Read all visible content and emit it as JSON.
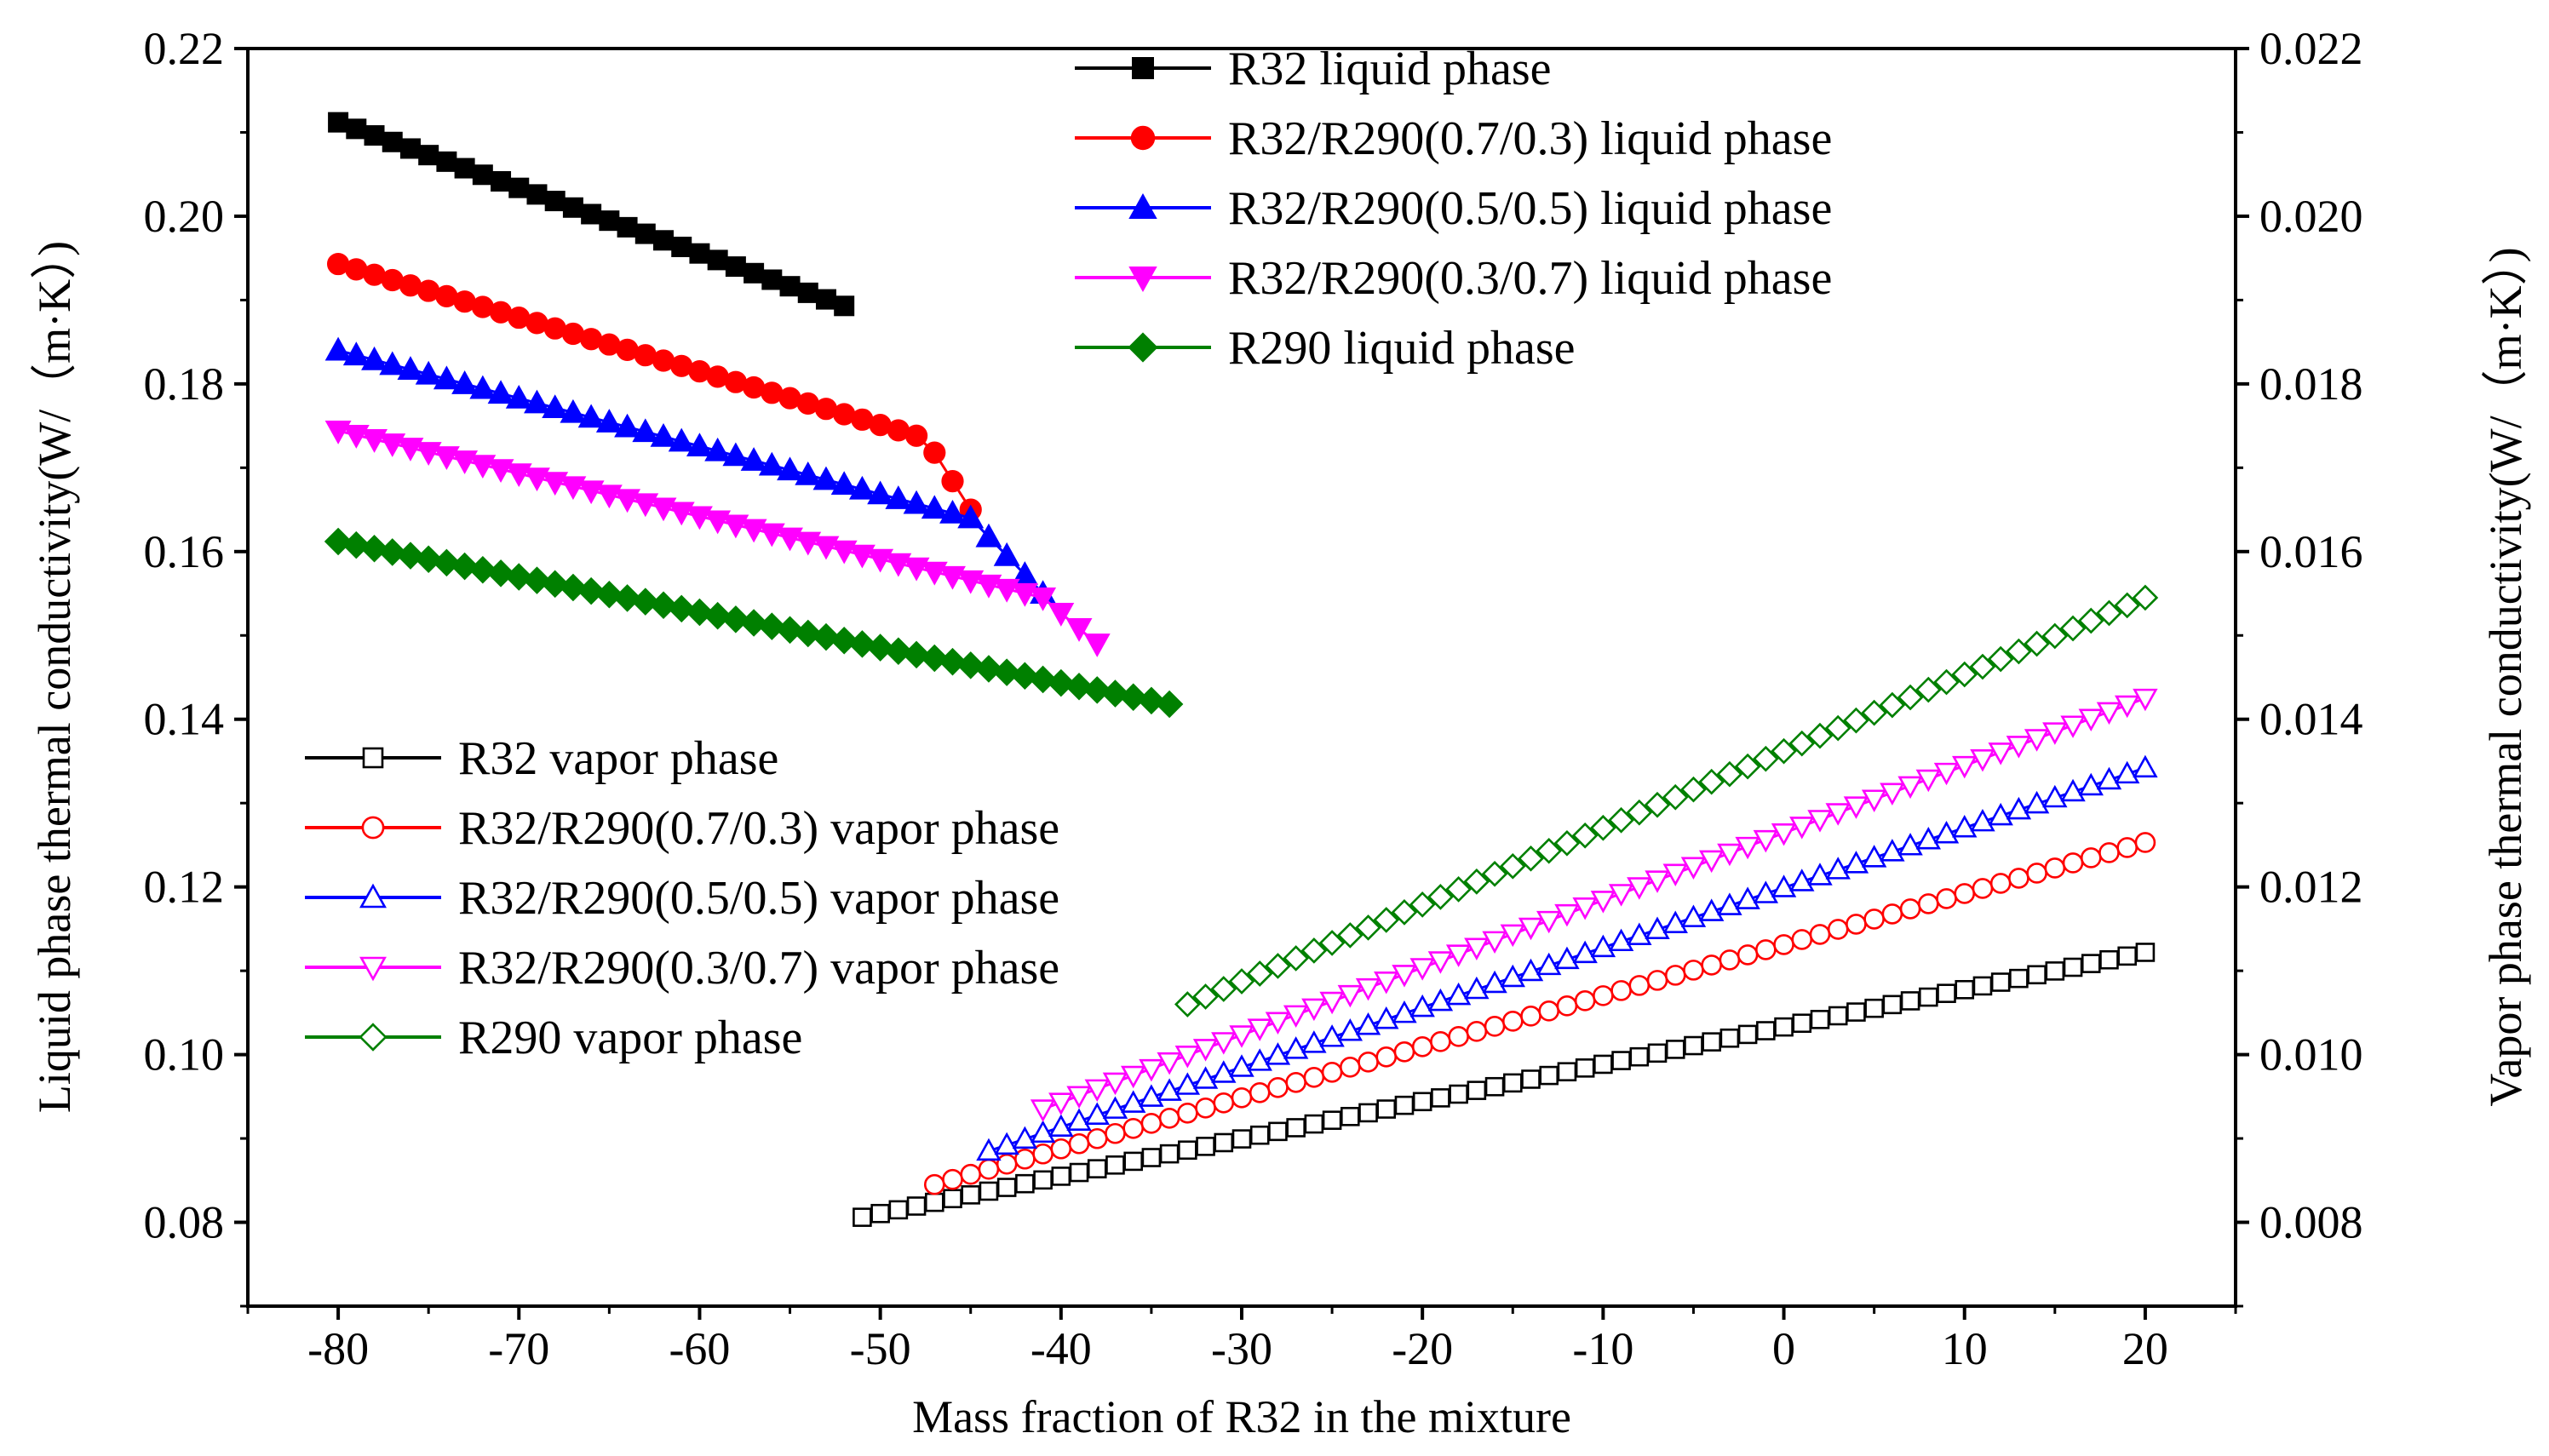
{
  "chart_data": {
    "type": "scatter-line",
    "xlabel": "Mass fraction of R32 in the mixture",
    "ylabel_left": "Liquid phase thermal conductivity(W/（m·K）)",
    "ylabel_right": "Vapor phase thermal conductivity(W/（m·K）)",
    "xlim": [
      -85,
      25
    ],
    "ylim_left": [
      0.07,
      0.22
    ],
    "ylim_right": [
      0.007,
      0.022
    ],
    "x_ticks": [
      "-80",
      "-70",
      "-60",
      "-50",
      "-40",
      "-30",
      "-20",
      "-10",
      "0",
      "10",
      "20"
    ],
    "x_tick_values": [
      -80,
      -70,
      -60,
      -50,
      -40,
      -30,
      -20,
      -10,
      0,
      10,
      20
    ],
    "y_left_ticks": [
      "0.08",
      "0.10",
      "0.12",
      "0.14",
      "0.16",
      "0.18",
      "0.20",
      "0.22"
    ],
    "y_left_tick_values": [
      0.08,
      0.1,
      0.12,
      0.14,
      0.16,
      0.18,
      0.2,
      0.22
    ],
    "y_right_ticks": [
      "0.008",
      "0.010",
      "0.012",
      "0.014",
      "0.016",
      "0.018",
      "0.020",
      "0.022"
    ],
    "y_right_tick_values": [
      0.008,
      0.01,
      0.012,
      0.014,
      0.016,
      0.018,
      0.02,
      0.022
    ],
    "series": [
      {
        "name": "R32 liquid phase",
        "axis": "left",
        "color": "#000000",
        "marker": "square",
        "filled": true,
        "x_start": -80,
        "x_end": -52,
        "y_start": 0.2112,
        "y_end": 0.1893,
        "kinks": []
      },
      {
        "name": "R32/R290(0.7/0.3) liquid phase",
        "axis": "left",
        "color": "#ff0000",
        "marker": "circle",
        "filled": true,
        "x_start": -80,
        "x_end": -45,
        "y_start": 0.1943,
        "y_end": 0.165,
        "kinks": [
          [
            -47.5,
            0.1735
          ]
        ]
      },
      {
        "name": "R32/R290(0.5/0.5) liquid phase",
        "axis": "left",
        "color": "#0000ff",
        "marker": "triangle-up",
        "filled": true,
        "x_start": -80,
        "x_end": -41,
        "y_start": 0.184,
        "y_end": 0.155,
        "kinks": [
          [
            -45,
            0.164
          ]
        ]
      },
      {
        "name": "R32/R290(0.3/0.7) liquid phase",
        "axis": "left",
        "color": "#ff00ff",
        "marker": "triangle-down",
        "filled": true,
        "x_start": -80,
        "x_end": -38,
        "y_start": 0.1744,
        "y_end": 0.149,
        "kinks": [
          [
            -41,
            0.1545
          ]
        ]
      },
      {
        "name": "R290 liquid phase",
        "axis": "left",
        "color": "#008000",
        "marker": "diamond",
        "filled": true,
        "x_start": -80,
        "x_end": -34,
        "y_start": 0.1612,
        "y_end": 0.1418,
        "kinks": []
      },
      {
        "name": "R32 vapor phase",
        "axis": "right",
        "color": "#000000",
        "marker": "square",
        "filled": false,
        "x_start": -51,
        "x_end": 20,
        "y_start": 0.00806,
        "y_end": 0.01122,
        "kinks": []
      },
      {
        "name": "R32/R290(0.7/0.3) vapor phase",
        "axis": "right",
        "color": "#ff0000",
        "marker": "circle",
        "filled": false,
        "x_start": -47,
        "x_end": 20,
        "y_start": 0.00845,
        "y_end": 0.01253,
        "kinks": []
      },
      {
        "name": "R32/R290(0.5/0.5) vapor phase",
        "axis": "right",
        "color": "#0000ff",
        "marker": "triangle-up",
        "filled": false,
        "x_start": -44,
        "x_end": 20,
        "y_start": 0.00885,
        "y_end": 0.01342,
        "kinks": []
      },
      {
        "name": "R32/R290(0.3/0.7) vapor phase",
        "axis": "right",
        "color": "#ff00ff",
        "marker": "triangle-down",
        "filled": false,
        "x_start": -41,
        "x_end": 20,
        "y_start": 0.00935,
        "y_end": 0.01425,
        "kinks": []
      },
      {
        "name": "R290 vapor phase",
        "axis": "right",
        "color": "#008000",
        "marker": "diamond",
        "filled": false,
        "x_start": -33,
        "x_end": 20,
        "y_start": 0.0106,
        "y_end": 0.01545,
        "kinks": []
      }
    ],
    "legend_upper": [
      "R32 liquid phase",
      "R32/R290(0.7/0.3) liquid phase",
      "R32/R290(0.5/0.5) liquid phase",
      "R32/R290(0.3/0.7) liquid phase",
      "R290 liquid phase"
    ],
    "legend_lower": [
      "R32 vapor phase",
      "R32/R290(0.7/0.3) vapor phase",
      "R32/R290(0.5/0.5) vapor phase",
      "R32/R290(0.3/0.7) vapor phase",
      "R290 vapor phase"
    ],
    "legend_upper_position": "top-center",
    "legend_lower_position": "center-left",
    "grid": false
  }
}
